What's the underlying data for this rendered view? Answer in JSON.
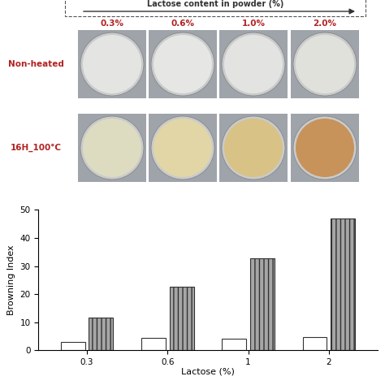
{
  "photos": {
    "header": "Lactose content in powder (%)",
    "columns": [
      "0.3%",
      "0.6%",
      "1.0%",
      "2.0%"
    ],
    "label_color": "#b22222",
    "rows": [
      {
        "label": "Non-heated",
        "colors": [
          "#e4e5e2",
          "#e6e7e5",
          "#e3e4e1",
          "#e1e1dc"
        ]
      },
      {
        "label": "16H_100°C",
        "colors": [
          "#dedcc0",
          "#e2d6a6",
          "#d9c285",
          "#c7935a"
        ]
      }
    ]
  },
  "chart_data": {
    "type": "bar",
    "categories": [
      "0.3",
      "0.6",
      "1",
      "2"
    ],
    "xlabel": "Lactose (%)",
    "ylabel": "Browning Index",
    "ylim": [
      0,
      50
    ],
    "yticks": [
      0,
      10,
      20,
      30,
      40,
      50
    ],
    "series": [
      {
        "color": "#ffffff",
        "values": [
          3.1,
          4.4,
          4.1,
          4.8
        ]
      },
      {
        "color": "#a6a6a6",
        "values": [
          11.8,
          22.5,
          32.8,
          46.8
        ]
      }
    ]
  }
}
